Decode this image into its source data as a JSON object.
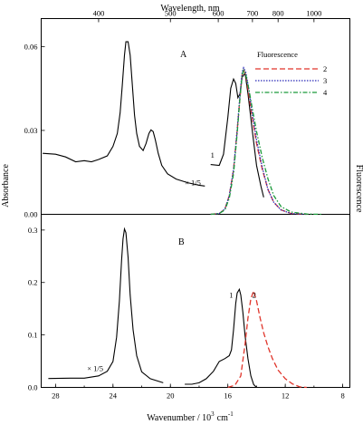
{
  "figure": {
    "top_axis_label": "Wavelength, nm",
    "bottom_axis_label": "Wavenumber / 10",
    "bottom_axis_label_sup": "3",
    "bottom_axis_label_unit": "cm",
    "bottom_axis_label_unit_sup": "-1",
    "left_axis_label": "Absorbance",
    "right_axis_label": "Fluorescence"
  },
  "chart_data": [
    {
      "panel": "A",
      "type": "line",
      "panel_label": "A",
      "x_unit": "10^3 cm^-1",
      "xlim": [
        29,
        7.5
      ],
      "ylim": [
        0,
        0.07
      ],
      "y_ticks": [
        {
          "value": 0.0,
          "label": "0.00"
        },
        {
          "value": 0.03,
          "label": "0.03"
        },
        {
          "value": 0.06,
          "label": "0.06"
        }
      ],
      "top_ticks": [
        {
          "nm": 400,
          "label": "400"
        },
        {
          "nm": 500,
          "label": "500"
        },
        {
          "nm": 600,
          "label": "600"
        },
        {
          "nm": 700,
          "label": "700"
        },
        {
          "nm": 800,
          "label": "800"
        },
        {
          "nm": 1000,
          "label": "1000"
        }
      ],
      "annotations": [
        {
          "text": "× 1/5",
          "x": 19.0,
          "y": 0.0104
        },
        {
          "text": "1",
          "x": 17.2,
          "y": 0.0202
        }
      ],
      "legend": {
        "title": "Fluorescence",
        "placement": "top-right",
        "entries": [
          {
            "label": "2",
            "color": "#e0352b",
            "style": "dashed"
          },
          {
            "label": "3",
            "color": "#2a2ab8",
            "style": "dotted"
          },
          {
            "label": "4",
            "color": "#1a9a3a",
            "style": "dash-dot"
          }
        ]
      },
      "series": [
        {
          "role": "absorbance",
          "color": "#000000",
          "style": "solid",
          "points": [
            [
              28.9,
              0.0218
            ],
            [
              28.0,
              0.0215
            ],
            [
              27.3,
              0.0205
            ],
            [
              26.6,
              0.0188
            ],
            [
              26.0,
              0.0192
            ],
            [
              25.5,
              0.0188
            ],
            [
              25.0,
              0.0196
            ],
            [
              24.4,
              0.0209
            ],
            [
              24.0,
              0.0243
            ],
            [
              23.7,
              0.0289
            ],
            [
              23.5,
              0.0363
            ],
            [
              23.35,
              0.0462
            ],
            [
              23.2,
              0.0569
            ],
            [
              23.1,
              0.0617
            ],
            [
              22.95,
              0.0617
            ],
            [
              22.8,
              0.0569
            ],
            [
              22.65,
              0.0462
            ],
            [
              22.5,
              0.0355
            ],
            [
              22.35,
              0.0289
            ],
            [
              22.15,
              0.0243
            ],
            [
              21.9,
              0.0228
            ],
            [
              21.7,
              0.0253
            ],
            [
              21.5,
              0.0289
            ],
            [
              21.35,
              0.0302
            ],
            [
              21.2,
              0.0296
            ],
            [
              21.05,
              0.0266
            ],
            [
              20.85,
              0.0218
            ],
            [
              20.6,
              0.0175
            ],
            [
              20.2,
              0.0145
            ],
            [
              19.6,
              0.0126
            ],
            [
              18.8,
              0.0113
            ],
            [
              18.0,
              0.0104
            ],
            [
              17.6,
              0.0101
            ]
          ]
        },
        {
          "role": "absorbance",
          "label": "1",
          "color": "#000000",
          "style": "solid",
          "points": [
            [
              17.2,
              0.0178
            ],
            [
              16.6,
              0.0175
            ],
            [
              16.3,
              0.0215
            ],
            [
              16.0,
              0.0347
            ],
            [
              15.8,
              0.0451
            ],
            [
              15.6,
              0.0484
            ],
            [
              15.45,
              0.0468
            ],
            [
              15.3,
              0.0417
            ],
            [
              15.15,
              0.0432
            ],
            [
              15.0,
              0.049
            ],
            [
              14.8,
              0.0505
            ],
            [
              14.6,
              0.0432
            ],
            [
              14.3,
              0.0302
            ],
            [
              14.0,
              0.0175
            ],
            [
              13.7,
              0.0101
            ],
            [
              13.5,
              0.0061
            ]
          ]
        },
        {
          "role": "fluorescence",
          "label": "2",
          "color": "#e0352b",
          "style": "dashed",
          "points": [
            [
              17.2,
              0.0
            ],
            [
              16.6,
              0.0003
            ],
            [
              16.2,
              0.0019
            ],
            [
              15.9,
              0.0067
            ],
            [
              15.6,
              0.016
            ],
            [
              15.35,
              0.0299
            ],
            [
              15.15,
              0.042
            ],
            [
              15.0,
              0.0499
            ],
            [
              14.9,
              0.0515
            ],
            [
              14.75,
              0.0499
            ],
            [
              14.55,
              0.0432
            ],
            [
              14.3,
              0.0347
            ],
            [
              14.0,
              0.0253
            ],
            [
              13.6,
              0.016
            ],
            [
              13.2,
              0.0088
            ],
            [
              12.8,
              0.0043
            ],
            [
              12.3,
              0.0016
            ],
            [
              11.6,
              0.0003
            ],
            [
              10.5,
              0.0
            ]
          ]
        },
        {
          "role": "fluorescence",
          "label": "3",
          "color": "#2a2ab8",
          "style": "dotted",
          "points": [
            [
              17.2,
              0.0
            ],
            [
              16.6,
              0.0003
            ],
            [
              16.2,
              0.0019
            ],
            [
              15.9,
              0.0067
            ],
            [
              15.6,
              0.016
            ],
            [
              15.35,
              0.0302
            ],
            [
              15.15,
              0.0432
            ],
            [
              15.0,
              0.0508
            ],
            [
              14.9,
              0.0524
            ],
            [
              14.75,
              0.0508
            ],
            [
              14.55,
              0.0451
            ],
            [
              14.3,
              0.036
            ],
            [
              14.0,
              0.0266
            ],
            [
              13.6,
              0.0167
            ],
            [
              13.2,
              0.0088
            ],
            [
              12.8,
              0.0043
            ],
            [
              12.3,
              0.0016
            ],
            [
              11.6,
              0.0003
            ],
            [
              10.5,
              0.0
            ]
          ]
        },
        {
          "role": "fluorescence",
          "label": "4",
          "color": "#1a9a3a",
          "style": "dash-dot",
          "points": [
            [
              17.2,
              0.0
            ],
            [
              16.6,
              0.0003
            ],
            [
              16.2,
              0.0016
            ],
            [
              15.9,
              0.0058
            ],
            [
              15.6,
              0.0145
            ],
            [
              15.35,
              0.0289
            ],
            [
              15.15,
              0.042
            ],
            [
              15.0,
              0.0499
            ],
            [
              14.9,
              0.0515
            ],
            [
              14.75,
              0.0499
            ],
            [
              14.55,
              0.0451
            ],
            [
              14.3,
              0.038
            ],
            [
              14.0,
              0.0296
            ],
            [
              13.6,
              0.0202
            ],
            [
              13.2,
              0.0126
            ],
            [
              12.8,
              0.0067
            ],
            [
              12.3,
              0.0028
            ],
            [
              11.6,
              0.0008
            ],
            [
              10.5,
              0.0001
            ],
            [
              9.5,
              0.0
            ]
          ]
        }
      ]
    },
    {
      "panel": "B",
      "type": "line",
      "panel_label": "B",
      "x_unit": "10^3 cm^-1",
      "xlim": [
        29,
        7.5
      ],
      "ylim": [
        0,
        0.33
      ],
      "y_ticks": [
        {
          "value": 0.0,
          "label": "0.0"
        },
        {
          "value": 0.1,
          "label": "0.1"
        },
        {
          "value": 0.2,
          "label": "0.2"
        },
        {
          "value": 0.3,
          "label": "0.3"
        }
      ],
      "x_ticks": [
        {
          "value": 28,
          "label": "28"
        },
        {
          "value": 24,
          "label": "24"
        },
        {
          "value": 20,
          "label": "20"
        },
        {
          "value": 16,
          "label": "16"
        },
        {
          "value": 12,
          "label": "12"
        },
        {
          "value": 8,
          "label": "8"
        }
      ],
      "annotations": [
        {
          "text": "× 1/5",
          "x": 25.8,
          "y": 0.0308
        },
        {
          "text": "1",
          "x": 15.9,
          "y": 0.171
        },
        {
          "text": "2",
          "x": 14.3,
          "y": 0.171
        }
      ],
      "series": [
        {
          "role": "absorbance",
          "color": "#000000",
          "style": "solid",
          "points": [
            [
              28.5,
              0.017
            ],
            [
              27.0,
              0.0176
            ],
            [
              26.0,
              0.0176
            ],
            [
              25.0,
              0.022
            ],
            [
              24.4,
              0.0308
            ],
            [
              24.0,
              0.0495
            ],
            [
              23.75,
              0.0957
            ],
            [
              23.55,
              0.165
            ],
            [
              23.4,
              0.242
            ],
            [
              23.3,
              0.283
            ],
            [
              23.2,
              0.302
            ],
            [
              23.1,
              0.295
            ],
            [
              22.95,
              0.248
            ],
            [
              22.8,
              0.176
            ],
            [
              22.6,
              0.11
            ],
            [
              22.35,
              0.0605
            ],
            [
              22.0,
              0.0297
            ],
            [
              21.4,
              0.0165
            ],
            [
              20.5,
              0.0088
            ]
          ]
        },
        {
          "role": "absorbance",
          "label": "1",
          "color": "#000000",
          "style": "solid",
          "points": [
            [
              19.0,
              0.006
            ],
            [
              18.5,
              0.006
            ],
            [
              18.0,
              0.0088
            ],
            [
              17.5,
              0.0165
            ],
            [
              17.0,
              0.0308
            ],
            [
              16.6,
              0.0495
            ],
            [
              16.2,
              0.055
            ],
            [
              15.9,
              0.0605
            ],
            [
              15.75,
              0.0715
            ],
            [
              15.6,
              0.11
            ],
            [
              15.45,
              0.16
            ],
            [
              15.35,
              0.18
            ],
            [
              15.2,
              0.187
            ],
            [
              15.1,
              0.176
            ],
            [
              14.95,
              0.143
            ],
            [
              14.8,
              0.099
            ],
            [
              14.6,
              0.055
            ],
            [
              14.4,
              0.022
            ],
            [
              14.2,
              0.0055
            ],
            [
              14.0,
              0.0
            ]
          ]
        },
        {
          "role": "fluorescence",
          "label": "2",
          "color": "#e0352b",
          "style": "dashed",
          "points": [
            [
              16.0,
              0.0
            ],
            [
              15.5,
              0.0044
            ],
            [
              15.1,
              0.022
            ],
            [
              14.8,
              0.0825
            ],
            [
              14.6,
              0.132
            ],
            [
              14.4,
              0.169
            ],
            [
              14.2,
              0.184
            ],
            [
              14.0,
              0.165
            ],
            [
              13.75,
              0.132
            ],
            [
              13.5,
              0.104
            ],
            [
              13.2,
              0.077
            ],
            [
              12.9,
              0.055
            ],
            [
              12.5,
              0.033
            ],
            [
              12.0,
              0.0165
            ],
            [
              11.5,
              0.0066
            ],
            [
              11.0,
              0.0011
            ],
            [
              10.5,
              0.0
            ]
          ]
        }
      ]
    }
  ]
}
